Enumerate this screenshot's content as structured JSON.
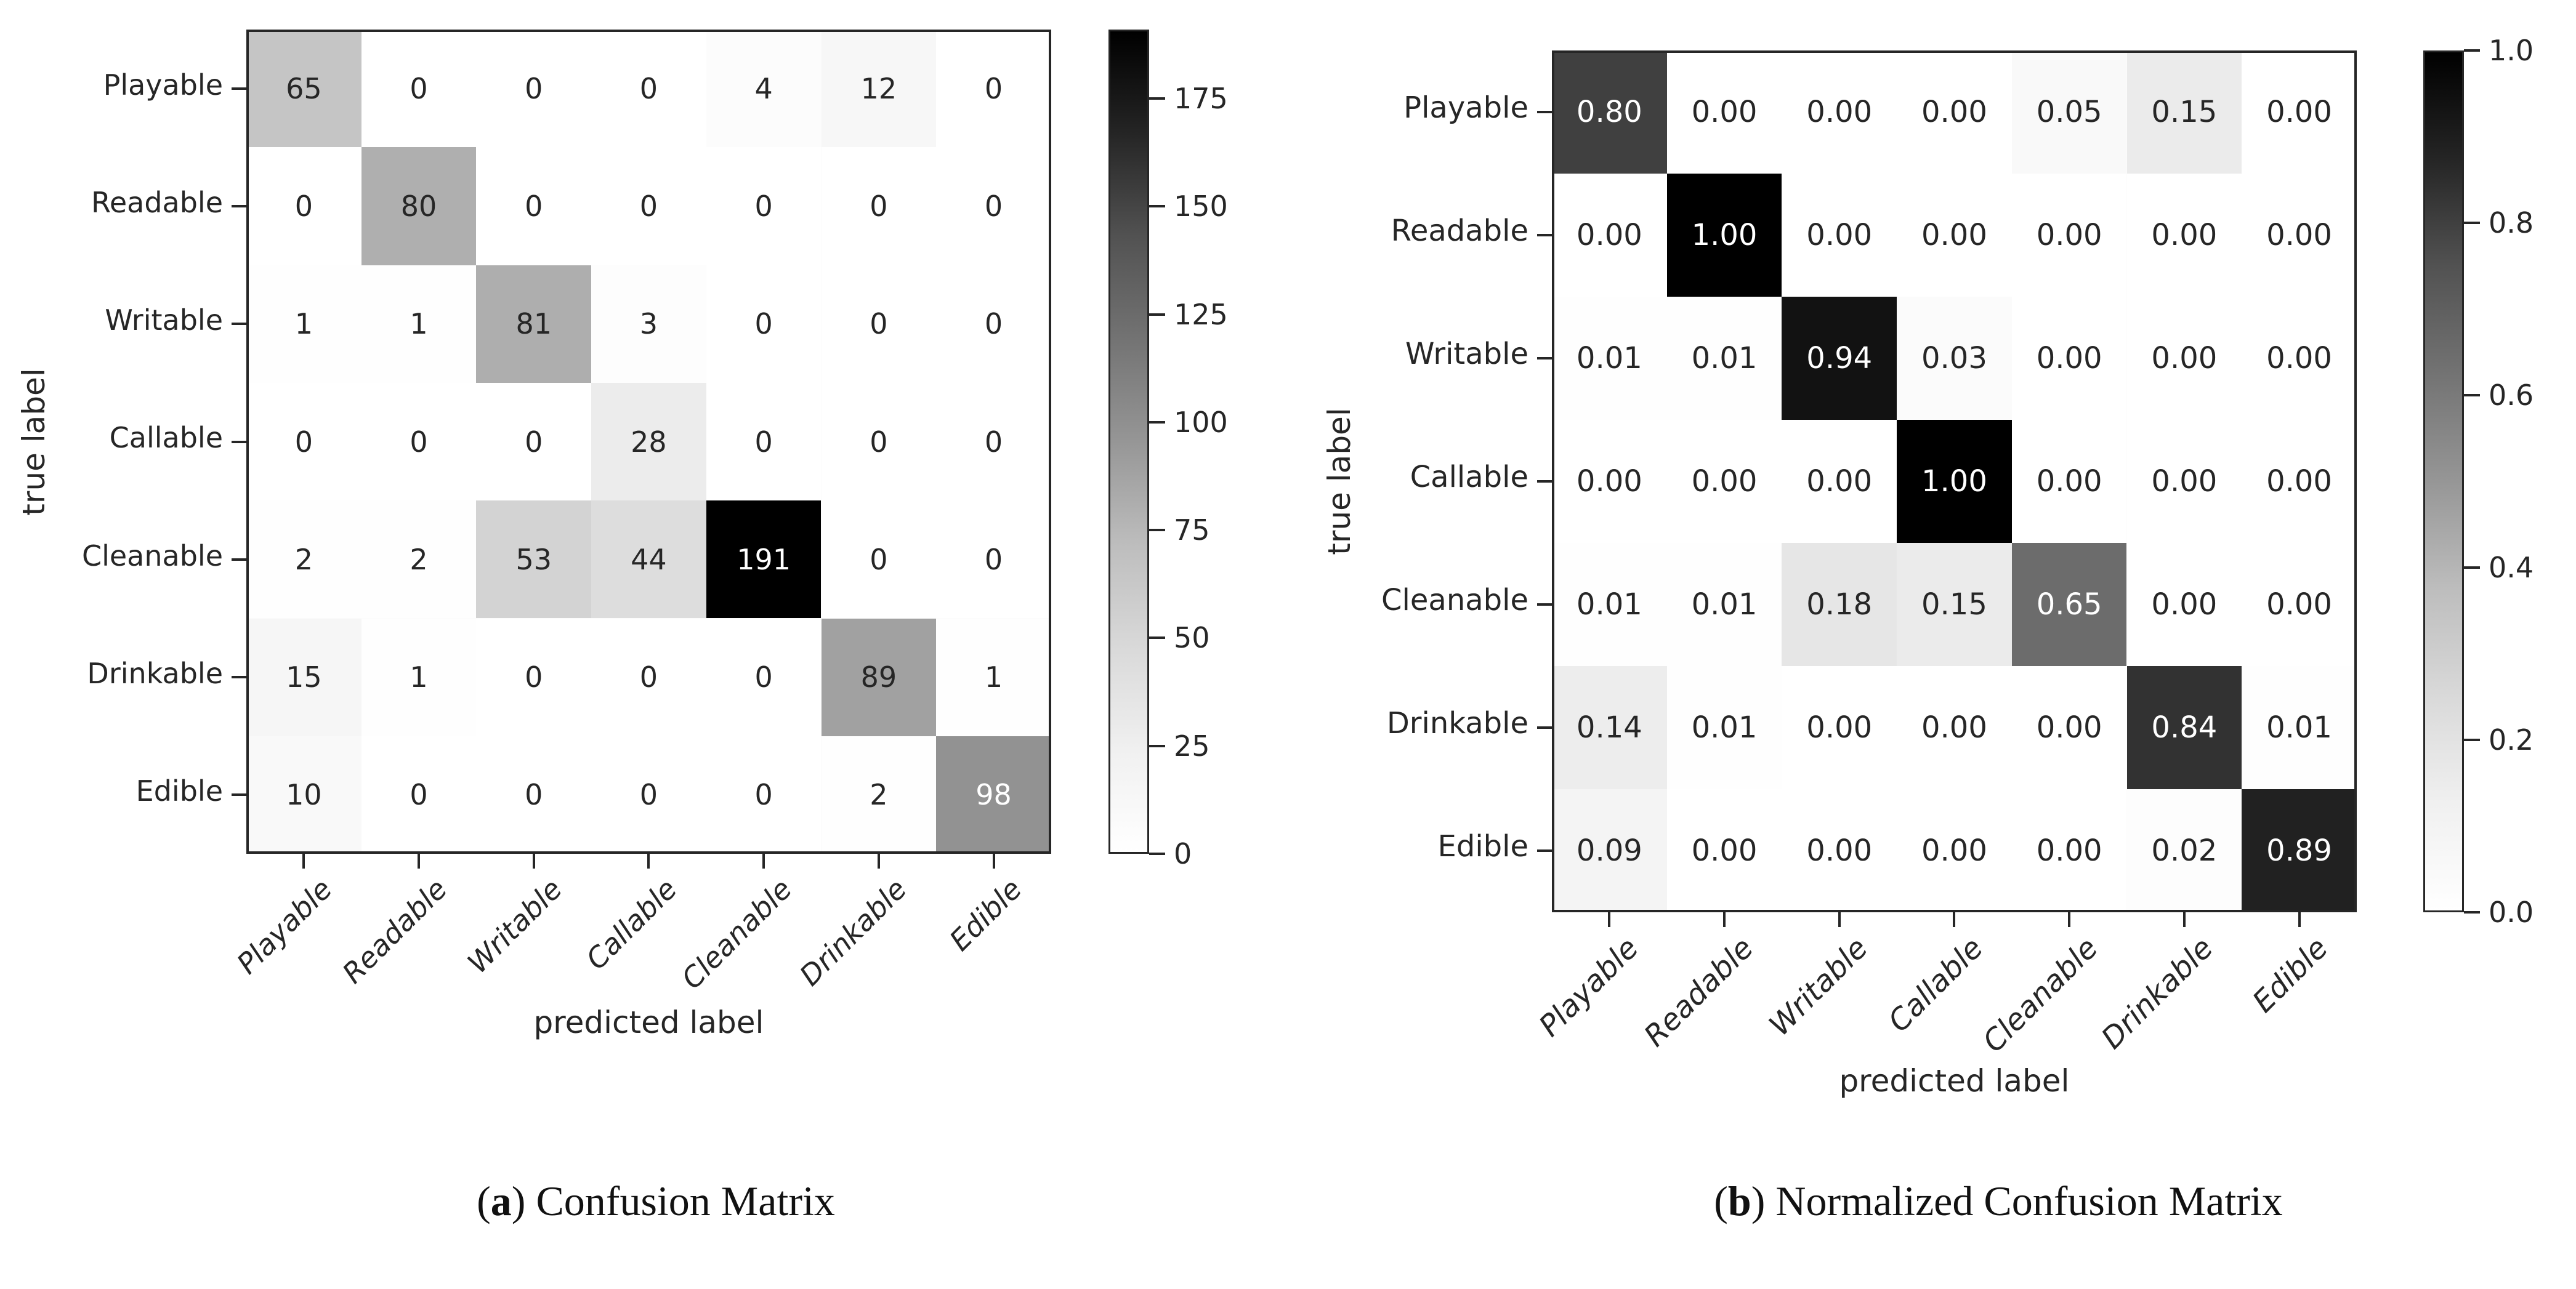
{
  "page": {
    "background": "#ffffff"
  },
  "colors": {
    "spine": "#262626",
    "tick_text": "#262626",
    "cell_text_dark": "#262626",
    "cell_text_light": "#ffffff",
    "caption_text": "#111111",
    "colormap_name": "Greys"
  },
  "chart_data": [
    {
      "id": "a",
      "type": "heatmap",
      "title": "Confusion Matrix",
      "caption": {
        "open": "(",
        "letter": "a",
        "close": ") ",
        "text": "Confusion Matrix"
      },
      "xlabel": "predicted label",
      "ylabel": "true label",
      "categories": [
        "Playable",
        "Readable",
        "Writable",
        "Callable",
        "Cleanable",
        "Drinkable",
        "Edible"
      ],
      "matrix": [
        [
          65,
          0,
          0,
          0,
          4,
          12,
          0
        ],
        [
          0,
          80,
          0,
          0,
          0,
          0,
          0
        ],
        [
          1,
          1,
          81,
          3,
          0,
          0,
          0
        ],
        [
          0,
          0,
          0,
          28,
          0,
          0,
          0
        ],
        [
          2,
          2,
          53,
          44,
          191,
          0,
          0
        ],
        [
          15,
          1,
          0,
          0,
          0,
          89,
          1
        ],
        [
          10,
          0,
          0,
          0,
          0,
          2,
          98
        ]
      ],
      "value_format": "int",
      "vmin": 0,
      "vmax": 191,
      "colorbar_position": "right",
      "colorbar_tick_values": [
        0,
        25,
        50,
        75,
        100,
        125,
        150,
        175
      ],
      "colorbar_tick_labels": [
        "0",
        "25",
        "50",
        "75",
        "100",
        "125",
        "150",
        "175"
      ],
      "grid": false
    },
    {
      "id": "b",
      "type": "heatmap",
      "title": "Normalized Confusion Matrix",
      "caption": {
        "open": "(",
        "letter": "b",
        "close": ") ",
        "text": "Normalized Confusion Matrix"
      },
      "xlabel": "predicted label",
      "ylabel": "true label",
      "categories": [
        "Playable",
        "Readable",
        "Writable",
        "Callable",
        "Cleanable",
        "Drinkable",
        "Edible"
      ],
      "matrix": [
        [
          0.8,
          0.0,
          0.0,
          0.0,
          0.05,
          0.15,
          0.0
        ],
        [
          0.0,
          1.0,
          0.0,
          0.0,
          0.0,
          0.0,
          0.0
        ],
        [
          0.01,
          0.01,
          0.94,
          0.03,
          0.0,
          0.0,
          0.0
        ],
        [
          0.0,
          0.0,
          0.0,
          1.0,
          0.0,
          0.0,
          0.0
        ],
        [
          0.01,
          0.01,
          0.18,
          0.15,
          0.65,
          0.0,
          0.0
        ],
        [
          0.14,
          0.01,
          0.0,
          0.0,
          0.0,
          0.84,
          0.01
        ],
        [
          0.09,
          0.0,
          0.0,
          0.0,
          0.0,
          0.02,
          0.89
        ]
      ],
      "value_format": "fixed2",
      "vmin": 0.0,
      "vmax": 1.0,
      "colorbar_position": "right",
      "colorbar_tick_values": [
        0.0,
        0.2,
        0.4,
        0.6,
        0.8,
        1.0
      ],
      "colorbar_tick_labels": [
        "0.0",
        "0.2",
        "0.4",
        "0.6",
        "0.8",
        "1.0"
      ],
      "grid": false
    }
  ]
}
